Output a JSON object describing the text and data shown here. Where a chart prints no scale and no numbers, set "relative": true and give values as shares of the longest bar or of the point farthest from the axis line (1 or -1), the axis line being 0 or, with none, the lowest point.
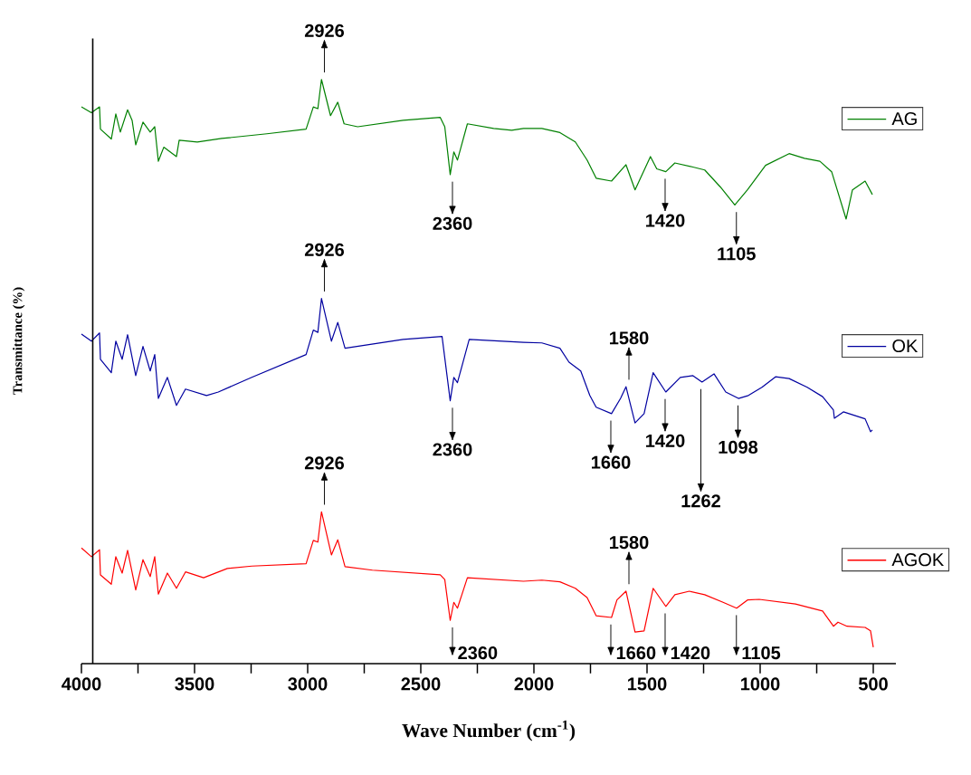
{
  "chart_data": {
    "type": "line",
    "relative": true,
    "xlabel": "Wave Number (cm$^{-1}$)",
    "ylabel": "Transmittance (%)",
    "xlim": [
      4000,
      400
    ],
    "xticks": [
      4000,
      {
        "value": 3750,
        "label": null
      },
      3500,
      {
        "value": 3250,
        "label": null
      },
      3000,
      {
        "value": 2750,
        "label": null
      },
      2500,
      {
        "value": 2250,
        "label": null
      },
      2000,
      {
        "value": 1750,
        "label": null
      },
      1500,
      {
        "value": 1250,
        "label": null
      },
      1000,
      {
        "value": 750,
        "label": null
      },
      500
    ],
    "legend": "right",
    "ref_lines": [
      {
        "axis": "x",
        "value": 3950,
        "color": "#000000"
      }
    ],
    "series": [
      {
        "name": "AG",
        "color": "#008000",
        "x": [
          4000,
          3956,
          3920,
          3916,
          3868,
          3848,
          3828,
          3796,
          3776,
          3760,
          3728,
          3696,
          3676,
          3660,
          3636,
          3580,
          3568,
          3488,
          3380,
          3180,
          3007,
          2975,
          2955,
          2939,
          2899,
          2867,
          2839,
          2779,
          2578,
          2414,
          2394,
          2370,
          2354,
          2338,
          2294,
          2178,
          2098,
          2046,
          1965,
          1885,
          1817,
          1765,
          1725,
          1657,
          1593,
          1553,
          1485,
          1457,
          1417,
          1377,
          1297,
          1245,
          1176,
          1112,
          1056,
          976,
          872,
          804,
          736,
          684,
          620,
          592,
          536,
          504
        ],
        "values": [
          0.953,
          0.943,
          0.953,
          0.915,
          0.898,
          0.941,
          0.91,
          0.948,
          0.93,
          0.888,
          0.927,
          0.91,
          0.919,
          0.86,
          0.884,
          0.868,
          0.896,
          0.893,
          0.899,
          0.907,
          0.915,
          0.953,
          0.95,
          1.0,
          0.938,
          0.961,
          0.924,
          0.919,
          0.93,
          0.935,
          0.919,
          0.837,
          0.876,
          0.862,
          0.924,
          0.916,
          0.913,
          0.916,
          0.916,
          0.909,
          0.893,
          0.862,
          0.831,
          0.826,
          0.854,
          0.811,
          0.868,
          0.847,
          0.842,
          0.857,
          0.85,
          0.845,
          0.816,
          0.785,
          0.811,
          0.853,
          0.873,
          0.865,
          0.86,
          0.842,
          0.761,
          0.811,
          0.826,
          0.803
        ]
      },
      {
        "name": "OK",
        "color": "#0000a0",
        "x": [
          4000,
          3956,
          3920,
          3916,
          3868,
          3848,
          3820,
          3796,
          3760,
          3728,
          3696,
          3676,
          3660,
          3620,
          3580,
          3540,
          3447,
          3395,
          3247,
          3007,
          2975,
          2955,
          2939,
          2895,
          2867,
          2835,
          2578,
          2406,
          2370,
          2354,
          2338,
          2286,
          2046,
          1965,
          1885,
          1845,
          1793,
          1753,
          1725,
          1657,
          1617,
          1593,
          1553,
          1513,
          1473,
          1417,
          1353,
          1297,
          1257,
          1204,
          1152,
          1096,
          1052,
          992,
          932,
          872,
          792,
          724,
          676,
          672,
          632,
          536,
          512,
          504
        ],
        "values": [
          0.564,
          0.552,
          0.566,
          0.521,
          0.498,
          0.552,
          0.521,
          0.563,
          0.493,
          0.543,
          0.501,
          0.529,
          0.454,
          0.49,
          0.442,
          0.47,
          0.459,
          0.465,
          0.49,
          0.529,
          0.571,
          0.567,
          0.625,
          0.552,
          0.584,
          0.54,
          0.555,
          0.56,
          0.45,
          0.49,
          0.481,
          0.555,
          0.55,
          0.549,
          0.54,
          0.516,
          0.501,
          0.459,
          0.439,
          0.428,
          0.454,
          0.474,
          0.412,
          0.428,
          0.498,
          0.465,
          0.49,
          0.493,
          0.482,
          0.496,
          0.465,
          0.454,
          0.459,
          0.473,
          0.491,
          0.488,
          0.473,
          0.457,
          0.434,
          0.42,
          0.431,
          0.419,
          0.397,
          0.4
        ]
      },
      {
        "name": "AGOK",
        "color": "#ff0000",
        "x": [
          4000,
          3956,
          3920,
          3916,
          3868,
          3848,
          3820,
          3796,
          3760,
          3728,
          3696,
          3676,
          3660,
          3620,
          3580,
          3540,
          3460,
          3355,
          3247,
          3007,
          2975,
          2955,
          2939,
          2895,
          2867,
          2835,
          2714,
          2414,
          2394,
          2370,
          2354,
          2338,
          2294,
          2046,
          1965,
          1885,
          1817,
          1765,
          1725,
          1657,
          1633,
          1593,
          1553,
          1513,
          1473,
          1417,
          1377,
          1313,
          1245,
          1164,
          1104,
          1056,
          1004,
          844,
          724,
          676,
          656,
          616,
          536,
          512,
          500
        ],
        "values": [
          0.198,
          0.183,
          0.195,
          0.152,
          0.136,
          0.183,
          0.155,
          0.194,
          0.126,
          0.178,
          0.149,
          0.183,
          0.119,
          0.155,
          0.129,
          0.157,
          0.147,
          0.163,
          0.167,
          0.171,
          0.211,
          0.208,
          0.26,
          0.186,
          0.212,
          0.166,
          0.16,
          0.152,
          0.144,
          0.074,
          0.105,
          0.095,
          0.147,
          0.141,
          0.143,
          0.14,
          0.129,
          0.113,
          0.082,
          0.079,
          0.109,
          0.124,
          0.054,
          0.056,
          0.129,
          0.098,
          0.118,
          0.124,
          0.118,
          0.105,
          0.095,
          0.109,
          0.11,
          0.102,
          0.09,
          0.064,
          0.071,
          0.064,
          0.062,
          0.056,
          0.028
        ]
      }
    ],
    "annotations": [
      {
        "text": "2926",
        "x": 2926,
        "y": 1.0
      },
      {
        "text": "2360",
        "x": 2360,
        "y": 0.837
      },
      {
        "text": "1420",
        "x": 1420,
        "y": 0.842
      },
      {
        "text": "1105",
        "x": 1105,
        "y": 0.785
      },
      {
        "text": "2926",
        "x": 2926,
        "y": 0.625
      },
      {
        "text": "2360",
        "x": 2360,
        "y": 0.45
      },
      {
        "text": "1580",
        "x": 1580,
        "y": 0.474
      },
      {
        "text": "1660",
        "x": 1660,
        "y": 0.428
      },
      {
        "text": "1420",
        "x": 1420,
        "y": 0.465
      },
      {
        "text": "1262",
        "x": 1262,
        "y": 0.482
      },
      {
        "text": "1098",
        "x": 1098,
        "y": 0.454
      },
      {
        "text": "2926",
        "x": 2926,
        "y": 0.26
      },
      {
        "text": "2360",
        "x": 2360,
        "y": 0.074
      },
      {
        "text": "1580",
        "x": 1580,
        "y": 0.124
      },
      {
        "text": "1660",
        "x": 1660,
        "y": 0.079
      },
      {
        "text": "1420",
        "x": 1420,
        "y": 0.098
      },
      {
        "text": "1105",
        "x": 1105,
        "y": 0.095
      }
    ]
  }
}
